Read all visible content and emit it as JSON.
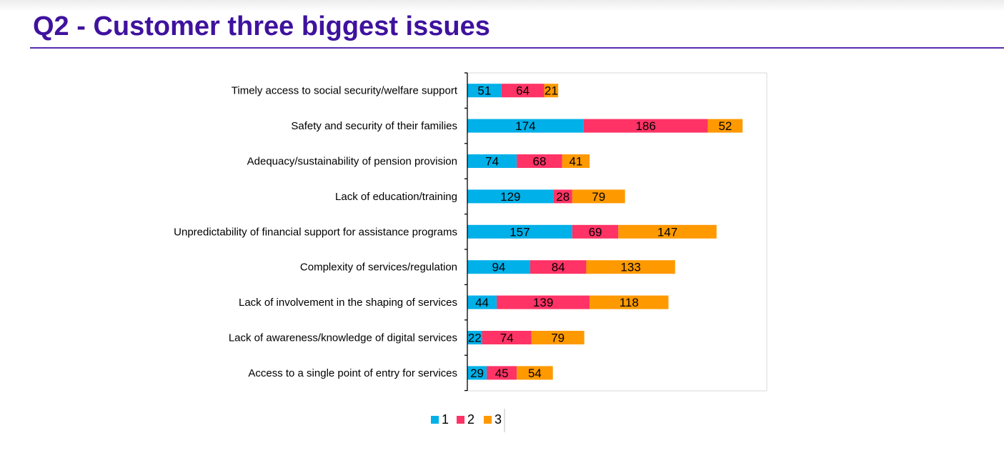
{
  "page": {
    "title": "Q2 - Customer three biggest issues"
  },
  "chart_data": {
    "type": "bar",
    "orientation": "horizontal",
    "stacked": true,
    "categories": [
      "Timely access to social security/welfare support",
      "Safety and security of their families",
      "Adequacy/sustainability of pension provision",
      "Lack of education/training",
      "Unpredictability of financial support for assistance programs",
      "Complexity of services/regulation",
      "Lack of involvement in the shaping of services",
      "Lack of awareness/knowledge of digital services",
      "Access to a single point of entry for services"
    ],
    "series": [
      {
        "name": "1",
        "color": "#00b0e8",
        "values": [
          51,
          174,
          74,
          129,
          157,
          94,
          44,
          22,
          29
        ]
      },
      {
        "name": "2",
        "color": "#ff3366",
        "values": [
          64,
          186,
          68,
          28,
          69,
          84,
          139,
          74,
          45
        ]
      },
      {
        "name": "3",
        "color": "#ff9900",
        "values": [
          21,
          52,
          41,
          79,
          147,
          133,
          118,
          79,
          54
        ]
      }
    ],
    "xlim": [
      0,
      450
    ],
    "grid": false,
    "legend": "bottom",
    "data_labels": true
  }
}
